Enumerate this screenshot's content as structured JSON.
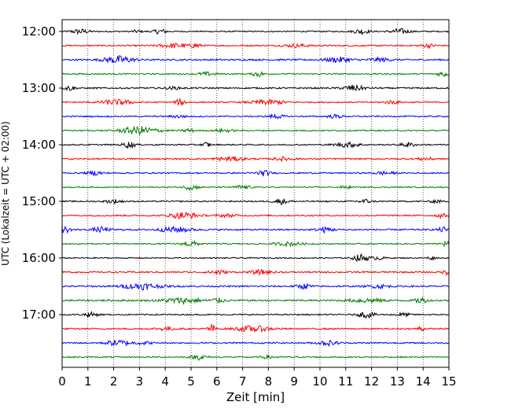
{
  "chart_data": {
    "type": "line",
    "title": "",
    "xlabel": "Zeit  [min]",
    "ylabel": "UTC (Lokalzeit = UTC + 02:00)",
    "xlim": [
      0,
      15
    ],
    "x_ticks": [
      "0",
      "1",
      "2",
      "3",
      "4",
      "5",
      "6",
      "7",
      "8",
      "9",
      "10",
      "11",
      "12",
      "13",
      "14",
      "15"
    ],
    "y_tick_labels": [
      "12:00",
      "13:00",
      "14:00",
      "15:00",
      "16:00",
      "17:00"
    ],
    "grid": "vertical dotted",
    "trace_colors": [
      "#000000",
      "#ff0000",
      "#0000ff",
      "#008000"
    ],
    "trace_start_times": [
      "12:00",
      "12:15",
      "12:30",
      "12:45",
      "13:00",
      "13:15",
      "13:30",
      "13:45",
      "14:00",
      "14:15",
      "14:30",
      "14:45",
      "15:00",
      "15:15",
      "15:30",
      "15:45",
      "16:00",
      "16:15",
      "16:30",
      "16:45",
      "17:00",
      "17:15",
      "17:30",
      "17:45"
    ],
    "traces": [
      {
        "base": 0.8,
        "bursts": [
          [
            0.7,
            0.35,
            3.0
          ],
          [
            3.8,
            0.25,
            3.0
          ],
          [
            11.6,
            0.3,
            3.0
          ],
          [
            13.1,
            0.35,
            3.2
          ],
          [
            2.9,
            0.2,
            1.5
          ]
        ]
      },
      {
        "base": 0.9,
        "bursts": [
          [
            4.4,
            0.6,
            2.6
          ],
          [
            5.2,
            0.15,
            3.2
          ],
          [
            9.1,
            0.5,
            1.8
          ],
          [
            14.2,
            0.3,
            2.0
          ]
        ]
      },
      {
        "base": 1.0,
        "bursts": [
          [
            2.2,
            0.55,
            4.5
          ],
          [
            10.7,
            0.5,
            3.0
          ],
          [
            12.3,
            0.4,
            2.2
          ]
        ]
      },
      {
        "base": 0.8,
        "bursts": [
          [
            5.6,
            0.35,
            2.0
          ],
          [
            7.6,
            0.2,
            3.5
          ],
          [
            14.8,
            0.25,
            3.0
          ]
        ]
      },
      {
        "base": 0.9,
        "bursts": [
          [
            0.3,
            0.2,
            3.0
          ],
          [
            11.3,
            0.4,
            3.6
          ],
          [
            4.3,
            0.3,
            1.4
          ]
        ]
      },
      {
        "base": 0.8,
        "bursts": [
          [
            2.1,
            0.6,
            3.2
          ],
          [
            4.6,
            0.2,
            3.8
          ],
          [
            8.0,
            0.7,
            2.8
          ],
          [
            12.8,
            0.3,
            2.0
          ]
        ]
      },
      {
        "base": 0.8,
        "bursts": [
          [
            8.3,
            0.3,
            2.4
          ],
          [
            10.6,
            0.3,
            2.0
          ],
          [
            4.5,
            0.3,
            1.6
          ]
        ]
      },
      {
        "base": 0.8,
        "bursts": [
          [
            3.0,
            0.7,
            5.0
          ],
          [
            4.9,
            0.2,
            2.6
          ],
          [
            6.3,
            0.3,
            2.0
          ]
        ]
      },
      {
        "base": 0.8,
        "bursts": [
          [
            2.6,
            0.25,
            3.6
          ],
          [
            5.6,
            0.15,
            3.2
          ],
          [
            11.1,
            0.5,
            2.8
          ],
          [
            13.4,
            0.3,
            2.4
          ]
        ]
      },
      {
        "base": 0.9,
        "bursts": [
          [
            6.5,
            0.6,
            2.4
          ],
          [
            8.6,
            0.4,
            2.0
          ],
          [
            14.1,
            0.3,
            1.8
          ]
        ]
      },
      {
        "base": 0.8,
        "bursts": [
          [
            1.3,
            0.3,
            2.4
          ],
          [
            7.8,
            0.25,
            3.4
          ],
          [
            12.5,
            0.4,
            2.0
          ]
        ]
      },
      {
        "base": 0.7,
        "bursts": [
          [
            5.0,
            0.3,
            3.0
          ],
          [
            7.0,
            0.3,
            2.6
          ],
          [
            11.0,
            0.2,
            1.6
          ]
        ]
      },
      {
        "base": 0.8,
        "bursts": [
          [
            2.0,
            0.3,
            2.4
          ],
          [
            8.5,
            0.3,
            3.2
          ],
          [
            11.7,
            0.3,
            2.4
          ],
          [
            14.5,
            0.2,
            2.0
          ]
        ]
      },
      {
        "base": 0.9,
        "bursts": [
          [
            4.7,
            0.5,
            4.0
          ],
          [
            14.7,
            0.2,
            2.4
          ],
          [
            6.4,
            0.4,
            1.6
          ]
        ]
      },
      {
        "base": 1.0,
        "bursts": [
          [
            0.1,
            0.2,
            3.8
          ],
          [
            1.5,
            0.3,
            3.0
          ],
          [
            4.4,
            0.6,
            3.2
          ],
          [
            10.2,
            0.3,
            3.2
          ],
          [
            14.8,
            0.2,
            3.2
          ]
        ]
      },
      {
        "base": 0.8,
        "bursts": [
          [
            5.0,
            0.3,
            3.2
          ],
          [
            8.8,
            0.5,
            2.2
          ],
          [
            14.9,
            0.2,
            3.2
          ]
        ]
      },
      {
        "base": 0.7,
        "bursts": [
          [
            11.6,
            0.3,
            4.6
          ],
          [
            12.3,
            0.2,
            2.4
          ],
          [
            14.3,
            0.15,
            2.0
          ]
        ]
      },
      {
        "base": 1.0,
        "bursts": [
          [
            6.0,
            0.3,
            2.8
          ],
          [
            7.7,
            0.4,
            2.4
          ],
          [
            14.9,
            0.15,
            2.8
          ]
        ]
      },
      {
        "base": 1.0,
        "bursts": [
          [
            3.1,
            0.7,
            3.8
          ],
          [
            9.4,
            0.3,
            2.8
          ],
          [
            12.3,
            0.4,
            2.0
          ]
        ]
      },
      {
        "base": 1.1,
        "bursts": [
          [
            4.6,
            0.7,
            3.2
          ],
          [
            6.0,
            0.3,
            2.6
          ],
          [
            11.8,
            0.6,
            2.4
          ],
          [
            13.9,
            0.2,
            3.6
          ]
        ]
      },
      {
        "base": 0.8,
        "bursts": [
          [
            1.1,
            0.3,
            2.6
          ],
          [
            11.8,
            0.3,
            3.8
          ],
          [
            13.2,
            0.3,
            2.0
          ]
        ]
      },
      {
        "base": 0.9,
        "bursts": [
          [
            5.8,
            0.15,
            5.0
          ],
          [
            7.4,
            0.7,
            3.4
          ],
          [
            4.0,
            0.4,
            1.8
          ],
          [
            13.9,
            0.15,
            3.0
          ]
        ]
      },
      {
        "base": 0.9,
        "bursts": [
          [
            2.2,
            0.5,
            3.4
          ],
          [
            10.3,
            0.4,
            2.8
          ],
          [
            3.2,
            0.3,
            1.6
          ]
        ]
      },
      {
        "base": 0.8,
        "bursts": [
          [
            5.3,
            0.3,
            3.0
          ],
          [
            8.0,
            0.3,
            1.6
          ]
        ]
      }
    ]
  }
}
